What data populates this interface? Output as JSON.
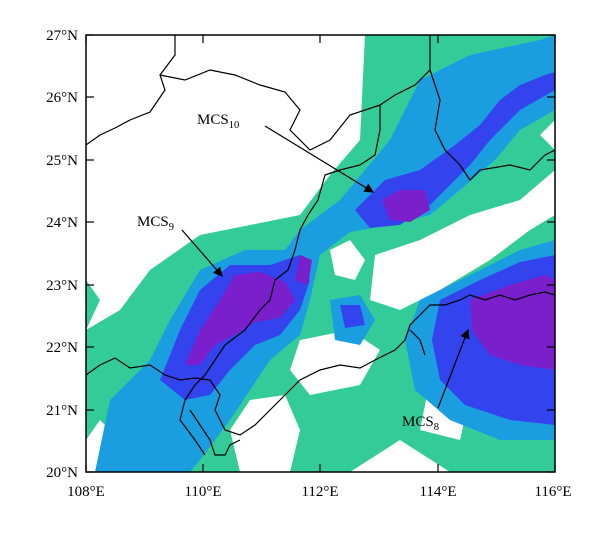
{
  "map": {
    "lat_labels": [
      "27°N",
      "26°N",
      "25°N",
      "24°N",
      "23°N",
      "22°N",
      "21°N",
      "20°N"
    ],
    "lon_labels": [
      "108°E",
      "110°E",
      "112°E",
      "114°E",
      "116°E"
    ],
    "lat_values": [
      27,
      26,
      25,
      24,
      23,
      22,
      21,
      20
    ],
    "lon_values": [
      108,
      110,
      112,
      114,
      116
    ],
    "colors": {
      "level1": "#33cc99",
      "level2": "#1a9ee0",
      "level3": "#3344ee",
      "level4": "#7a1fcc",
      "border": "#000000"
    },
    "mcs": [
      {
        "name": "MCS",
        "sub": "10"
      },
      {
        "name": "MCS",
        "sub": "9"
      },
      {
        "name": "MCS",
        "sub": "8"
      }
    ]
  }
}
